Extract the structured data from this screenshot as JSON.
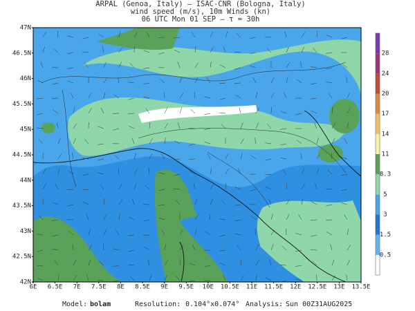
{
  "header": {
    "line1": "ARPAL (Genoa, Italy)  –  ISAC-CNR (Bologna, Italy)",
    "line2": "wind speed (m/s), 10m Winds (kn)",
    "line3": "06 UTC Mon 01 SEP  –  τ = 30h"
  },
  "map": {
    "lat_labels": [
      "47N",
      "46.5N",
      "46N",
      "45.5N",
      "45N",
      "44.5N",
      "44N",
      "43.5N",
      "43N",
      "42.5N",
      "42N"
    ],
    "lon_labels": [
      "6E",
      "6.5E",
      "7E",
      "7.5E",
      "8E",
      "8.5E",
      "9E",
      "9.5E",
      "10E",
      "10.5E",
      "11E",
      "11.5E",
      "12E",
      "12.5E",
      "13E",
      "13.5E"
    ]
  },
  "colorbar": {
    "labels": [
      "0.5",
      "1.5",
      "3",
      "5",
      "8.3",
      "11",
      "14",
      "17",
      "20",
      "24",
      "28"
    ],
    "colors": [
      "#ffffff",
      "#5db4ee",
      "#1f76d3",
      "#47a5e8",
      "#8fd6a8",
      "#5aa25a",
      "#fbf3a6",
      "#f5c062",
      "#e08a3a",
      "#c44a36",
      "#a0307a",
      "#7b35b5"
    ]
  },
  "footer": {
    "model_label": "Model:",
    "model": "bolam",
    "resolution_label": "Resolution:",
    "resolution": "0.104°x0.074°",
    "analysis_label": "Analysis:",
    "analysis": "Sun 00Z31AUG2025"
  }
}
